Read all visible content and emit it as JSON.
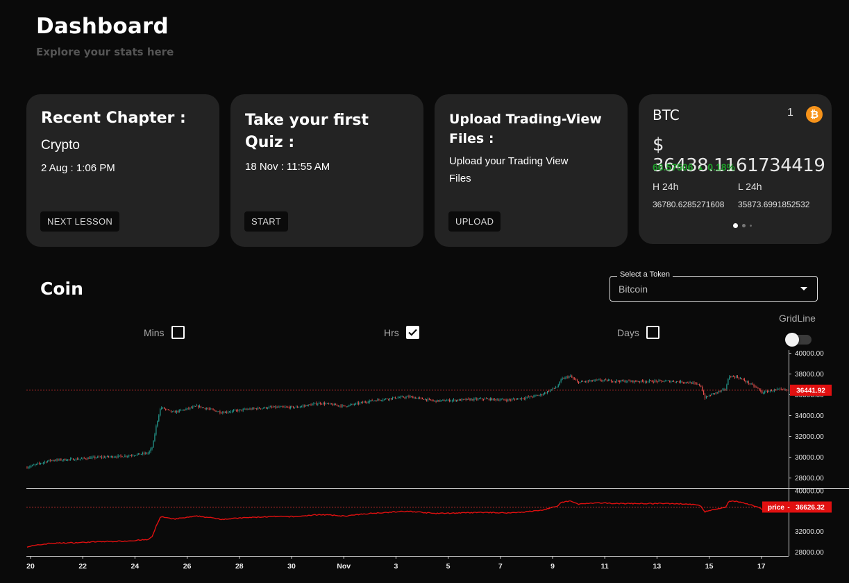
{
  "header": {
    "title": "Dashboard",
    "subtitle": "Explore your stats here"
  },
  "cards": {
    "recent": {
      "title": "Recent Chapter :",
      "chapter": "Crypto",
      "datetime": "2 Aug : 1:06 PM",
      "button": "NEXT LESSON"
    },
    "quiz": {
      "title_line1": "Take your first",
      "title_line2": "Quiz :",
      "datetime": "18 Nov : 11:55 AM",
      "button": "START"
    },
    "upload": {
      "title_line1": "Upload Trading-View",
      "title_line2": "Files :",
      "text_line1": "Upload your Trading View",
      "text_line2": "Files",
      "button": "UPLOAD"
    }
  },
  "ticker": {
    "symbol": "BTC",
    "rank": "1",
    "icon": "bitcoin-icon",
    "price": "$ 36438.1161734419",
    "change": "66.57506",
    "change_pct": "0.18%",
    "high_label": "H 24h",
    "low_label": "L 24h",
    "high": "36780.6285271608",
    "low": "35873.6991852532",
    "up_color": "#1f9d2a",
    "brand_color": "#f7931a"
  },
  "coin": {
    "title": "Coin",
    "select": {
      "label": "Select a Token",
      "value": "Bitcoin"
    },
    "intervals": [
      {
        "label": "Mins",
        "checked": false
      },
      {
        "label": "Hrs",
        "checked": true
      },
      {
        "label": "Days",
        "checked": false
      }
    ],
    "gridline": {
      "label": "GridLine",
      "on": false
    }
  },
  "chart_data": {
    "type": "candlestick",
    "x_ticks": [
      "20",
      "22",
      "24",
      "26",
      "28",
      "30",
      "Nov",
      "3",
      "5",
      "7",
      "9",
      "11",
      "13",
      "15",
      "17"
    ],
    "main_y_ticks": [
      "40000.00",
      "38000.00",
      "36000.00",
      "34000.00",
      "32000.00",
      "30000.00",
      "28000.00"
    ],
    "main_ylim": [
      27100,
      40300
    ],
    "last_price_label": "36441.92",
    "last_price": 36441.92,
    "series_label": "price",
    "series_value_label": "36626.32",
    "series_value": 36626.32,
    "sub_y_ticks": [
      "40000.00",
      "32000.00",
      "28000.00"
    ],
    "sub_ylim": [
      27400,
      40000
    ],
    "up_color": "#26a69a",
    "down_color": "#ef5350",
    "line_color": "#e01010",
    "price_path": [
      [
        0,
        29000
      ],
      [
        3,
        29700
      ],
      [
        6,
        29800
      ],
      [
        9,
        30000
      ],
      [
        12,
        30100
      ],
      [
        15,
        30400
      ],
      [
        15.5,
        31000
      ],
      [
        16,
        33200
      ],
      [
        16.5,
        34800
      ],
      [
        18,
        34300
      ],
      [
        21,
        34900
      ],
      [
        24,
        34300
      ],
      [
        27,
        34600
      ],
      [
        30,
        34800
      ],
      [
        33,
        34800
      ],
      [
        36,
        35200
      ],
      [
        39,
        34900
      ],
      [
        42,
        35400
      ],
      [
        45,
        35700
      ],
      [
        47,
        35800
      ],
      [
        50,
        35400
      ],
      [
        53,
        35500
      ],
      [
        56,
        35600
      ],
      [
        59,
        35500
      ],
      [
        61,
        35700
      ],
      [
        63,
        36000
      ],
      [
        64.5,
        36600
      ],
      [
        65,
        36800
      ],
      [
        65.5,
        37500
      ],
      [
        66.5,
        37800
      ],
      [
        67.5,
        37200
      ],
      [
        70,
        37400
      ],
      [
        73,
        37300
      ],
      [
        76,
        37300
      ],
      [
        79,
        37300
      ],
      [
        81,
        37200
      ],
      [
        82.5,
        36900
      ],
      [
        83,
        35700
      ],
      [
        84,
        36100
      ],
      [
        85.5,
        36500
      ],
      [
        86,
        37800
      ],
      [
        87,
        37700
      ],
      [
        88,
        37300
      ],
      [
        89.5,
        36600
      ],
      [
        90,
        36200
      ],
      [
        91,
        36400
      ],
      [
        92,
        36500
      ],
      [
        93,
        36440
      ]
    ]
  }
}
